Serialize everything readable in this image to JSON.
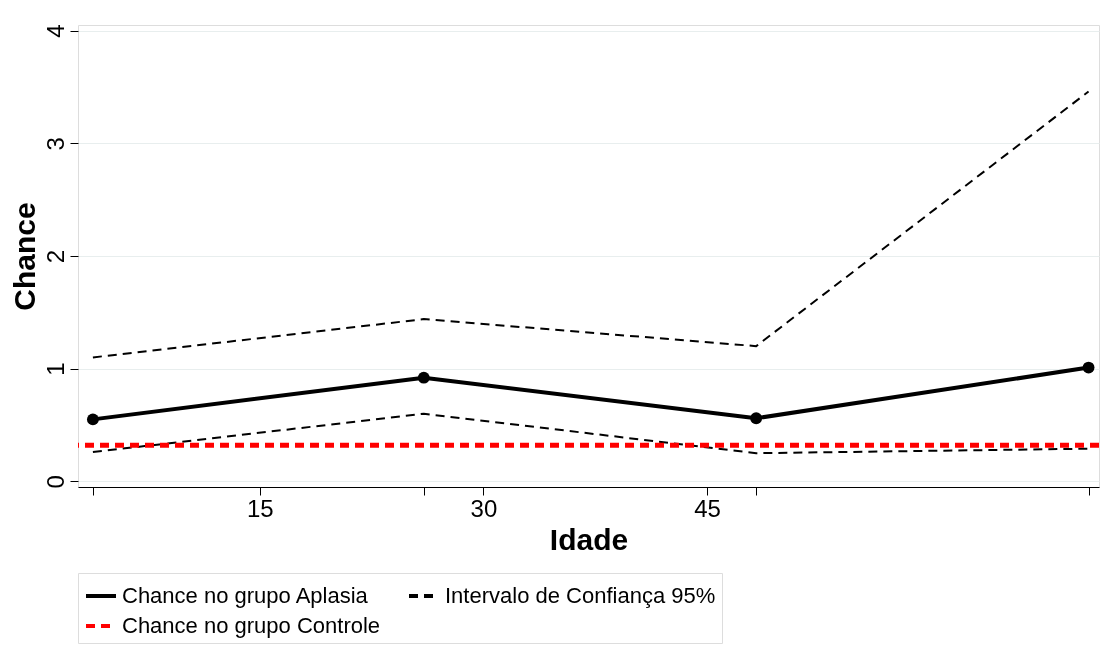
{
  "chart_data": {
    "type": "line",
    "xlabel": "Idade",
    "ylabel": "Chance",
    "xlim": [
      2.8,
      71.3
    ],
    "ylim": [
      -0.05,
      4.05
    ],
    "xticks": [
      {
        "value": 3.8,
        "label": null
      },
      15,
      {
        "value": 26.0,
        "label": null
      },
      30,
      45,
      {
        "value": 48.3,
        "label": null
      },
      {
        "value": 70.6,
        "label": null
      }
    ],
    "yticks": [
      0,
      1,
      2,
      3,
      4
    ],
    "x": [
      3.8,
      26.0,
      48.3,
      70.6
    ],
    "series": [
      {
        "name": "Chance no grupo Aplasia",
        "color": "#000000",
        "values": [
          0.55,
          0.92,
          0.56,
          1.01
        ],
        "marker": "circle",
        "line_style": "solid"
      },
      {
        "name": "Intervalo de Confiança 95%",
        "color": "#000000",
        "values": [
          1.1,
          1.44,
          1.2,
          3.46
        ],
        "marker": "none",
        "line_style": "dashed"
      },
      {
        "color": "#000000",
        "values": [
          0.26,
          0.6,
          0.25,
          0.29
        ],
        "marker": "none",
        "line_style": "dashed"
      }
    ],
    "ref_lines": [
      {
        "axis": "y",
        "value": 0.32,
        "label": "Chance no grupo Controle",
        "color": "#ff0000",
        "line_style": "dashed"
      }
    ],
    "grid": "y",
    "legend": "bottom"
  }
}
